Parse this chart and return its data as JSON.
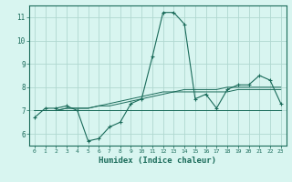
{
  "x": [
    0,
    1,
    2,
    3,
    4,
    5,
    6,
    7,
    8,
    9,
    10,
    11,
    12,
    13,
    14,
    15,
    16,
    17,
    18,
    19,
    20,
    21,
    22,
    23
  ],
  "y_main": [
    6.7,
    7.1,
    7.1,
    7.2,
    7.0,
    5.7,
    5.8,
    6.3,
    6.5,
    7.3,
    7.5,
    9.3,
    11.2,
    11.2,
    10.7,
    7.5,
    7.7,
    7.1,
    7.9,
    8.1,
    8.1,
    8.5,
    8.3,
    7.3
  ],
  "y_min": [
    7.0,
    7.0,
    7.0,
    7.0,
    7.0,
    7.0,
    7.0,
    7.0,
    7.0,
    7.0,
    7.0,
    7.0,
    7.0,
    7.0,
    7.0,
    7.0,
    7.0,
    7.0,
    7.0,
    7.0,
    7.0,
    7.0,
    7.0,
    7.0
  ],
  "y_avg1": [
    7.0,
    7.0,
    7.0,
    7.1,
    7.1,
    7.1,
    7.2,
    7.2,
    7.3,
    7.4,
    7.5,
    7.6,
    7.7,
    7.8,
    7.8,
    7.8,
    7.8,
    7.8,
    7.8,
    7.9,
    7.9,
    7.9,
    7.9,
    7.9
  ],
  "y_avg2": [
    7.0,
    7.0,
    7.0,
    7.1,
    7.1,
    7.1,
    7.2,
    7.3,
    7.4,
    7.5,
    7.6,
    7.7,
    7.8,
    7.8,
    7.9,
    7.9,
    7.9,
    7.9,
    8.0,
    8.0,
    8.0,
    8.0,
    8.0,
    8.0
  ],
  "line_color": "#1a6b5a",
  "bg_color": "#d8f5f0",
  "grid_color": "#b0d8d0",
  "xlabel": "Humidex (Indice chaleur)",
  "ylim": [
    5.5,
    11.5
  ],
  "xlim": [
    -0.5,
    23.5
  ],
  "yticks": [
    6,
    7,
    8,
    9,
    10,
    11
  ],
  "xticks": [
    0,
    1,
    2,
    3,
    4,
    5,
    6,
    7,
    8,
    9,
    10,
    11,
    12,
    13,
    14,
    15,
    16,
    17,
    18,
    19,
    20,
    21,
    22,
    23
  ],
  "xtick_labels": [
    "0",
    "1",
    "2",
    "3",
    "4",
    "5",
    "6",
    "7",
    "8",
    "9",
    "10",
    "11",
    "12",
    "13",
    "14",
    "15",
    "16",
    "17",
    "18",
    "19",
    "20",
    "21",
    "22",
    "23"
  ]
}
